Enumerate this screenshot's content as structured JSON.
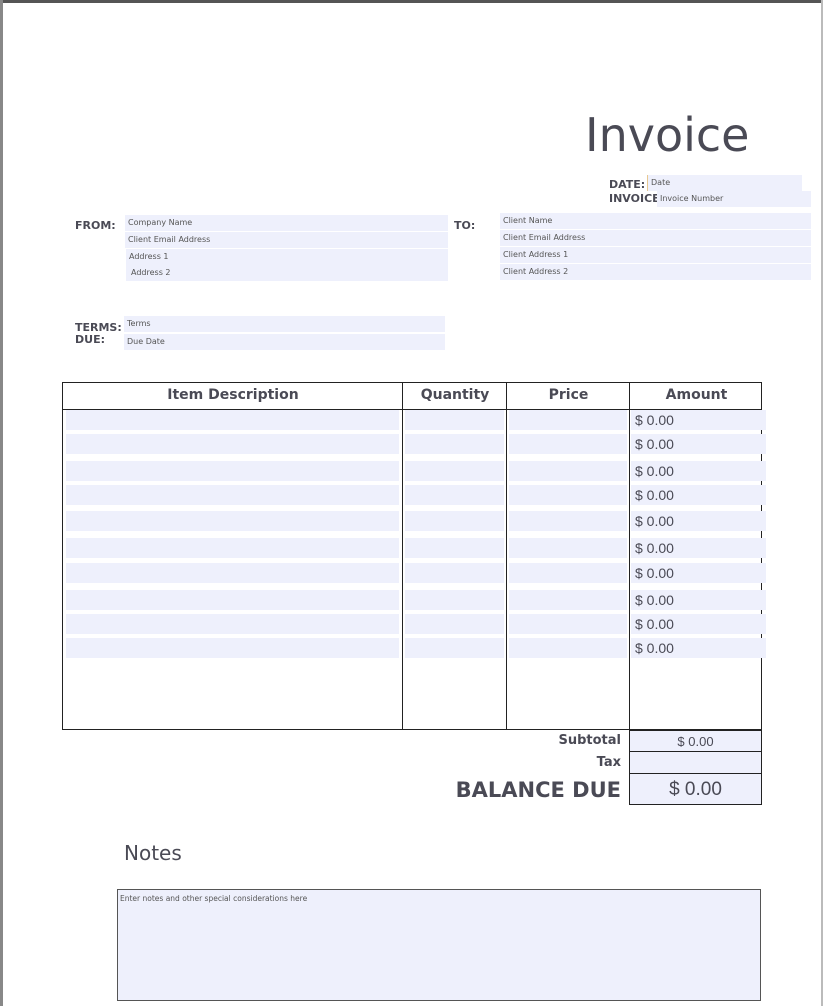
{
  "title": "Invoice",
  "meta": {
    "date_label": "DATE:",
    "date_placeholder": "Date",
    "invoice_label": "INVOICE",
    "invoice_placeholder": "Invoice Number"
  },
  "from": {
    "label": "FROM:",
    "fields": [
      "Company Name",
      "Client Email Address",
      "Address 1",
      "Address 2"
    ]
  },
  "to": {
    "label": "TO:",
    "fields": [
      "Client Name",
      "Client Email Address",
      "Client Address 1",
      "Client Address 2"
    ]
  },
  "terms": {
    "terms_label": "TERMS:",
    "terms_placeholder": "Terms",
    "due_label": "DUE:",
    "due_placeholder": "Due Date"
  },
  "table": {
    "headers": [
      "Item Description",
      "Quantity",
      "Price",
      "Amount"
    ],
    "amounts": [
      "$ 0.00",
      "$ 0.00",
      "$ 0.00",
      "$ 0.00",
      "$ 0.00",
      "$ 0.00",
      "$ 0.00",
      "$ 0.00",
      "$ 0.00",
      "$ 0.00"
    ]
  },
  "totals": {
    "subtotal_label": "Subtotal",
    "subtotal_value": "$ 0.00",
    "tax_label": "Tax",
    "tax_value": "",
    "balance_label": "BALANCE DUE",
    "balance_value": "$ 0.00"
  },
  "notes": {
    "label": "Notes",
    "placeholder": "Enter notes and other special considerations here"
  },
  "colors": {
    "field_fill": "#eef0fc",
    "text": "#4a4a55",
    "border": "#222222"
  }
}
